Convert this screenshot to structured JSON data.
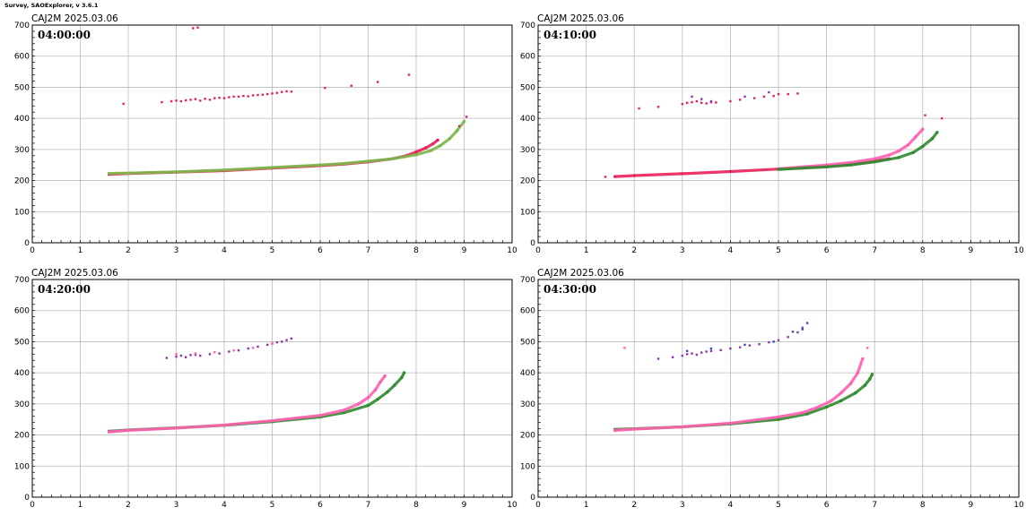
{
  "app_title": "Survey, SAOExplorer, v 3.6.1",
  "colors": {
    "o_mode_trace": "#e8205a",
    "x_mode_trace": "#2e8b2e",
    "light_x_trace": "#7ab84a",
    "magenta_trace": "#ff5fb0",
    "purple_points": "#8a3aa8",
    "blue_points": "#3050c0",
    "grid": "#bbbbbb"
  },
  "chart_data": [
    {
      "type": "scatter",
      "title": "CAJ2M 2025.03.06",
      "annotation": "04:00:00",
      "xlim": [
        0,
        10
      ],
      "ylim": [
        0,
        700
      ],
      "xticks": [
        0,
        1,
        2,
        3,
        4,
        5,
        6,
        7,
        8,
        9,
        10
      ],
      "yticks": [
        0,
        100,
        200,
        300,
        400,
        500,
        600,
        700
      ],
      "grid": true,
      "series": [
        {
          "color": "o_mode_trace",
          "style": "line",
          "x": [
            1.6,
            2,
            3,
            4,
            5,
            6,
            6.5,
            7,
            7.5,
            7.8,
            8,
            8.2,
            8.35,
            8.45
          ],
          "y": [
            220,
            223,
            227,
            232,
            240,
            248,
            253,
            260,
            270,
            280,
            292,
            305,
            318,
            330
          ]
        },
        {
          "color": "light_x_trace",
          "style": "line",
          "x": [
            1.6,
            2,
            3,
            4,
            5,
            6,
            6.5,
            7,
            7.5,
            8,
            8.3,
            8.5,
            8.7,
            8.85,
            9.0
          ],
          "y": [
            223,
            224,
            228,
            234,
            242,
            250,
            255,
            262,
            270,
            283,
            296,
            312,
            335,
            360,
            390
          ]
        },
        {
          "color": "o_mode_trace",
          "style": "dots",
          "x": [
            2.7,
            2.9,
            3.0,
            3.1,
            3.2,
            3.3,
            3.4,
            3.5,
            3.6,
            3.7,
            3.8,
            3.9,
            4.0,
            4.1,
            4.2,
            4.3,
            4.4,
            4.5,
            4.6,
            4.7,
            4.8,
            4.9,
            5.0,
            5.1,
            5.2,
            5.3,
            5.4
          ],
          "y": [
            452,
            455,
            457,
            455,
            458,
            460,
            462,
            457,
            463,
            460,
            465,
            466,
            465,
            468,
            470,
            470,
            472,
            471,
            474,
            475,
            476,
            478,
            480,
            482,
            485,
            487,
            486
          ]
        },
        {
          "color": "o_mode_trace",
          "style": "dots",
          "x": [
            1.9,
            3.35,
            3.45,
            6.1,
            6.65,
            7.2,
            7.85,
            8.9,
            9.05
          ],
          "y": [
            447,
            690,
            692,
            498,
            505,
            517,
            540,
            375,
            405
          ]
        }
      ]
    },
    {
      "type": "scatter",
      "title": "CAJ2M 2025.03.06",
      "annotation": "04:10:00",
      "xlim": [
        0,
        10
      ],
      "ylim": [
        0,
        700
      ],
      "xticks": [
        0,
        1,
        2,
        3,
        4,
        5,
        6,
        7,
        8,
        9,
        10
      ],
      "yticks": [
        0,
        100,
        200,
        300,
        400,
        500,
        600,
        700
      ],
      "grid": true,
      "series": [
        {
          "color": "o_mode_trace",
          "style": "line",
          "x": [
            1.6,
            2,
            3,
            4,
            5,
            6,
            6.5,
            7,
            7.3
          ],
          "y": [
            213,
            216,
            222,
            229,
            237,
            246,
            252,
            262,
            270
          ]
        },
        {
          "color": "magenta_trace",
          "style": "line",
          "x": [
            5,
            6,
            6.5,
            7,
            7.3,
            7.5,
            7.7,
            7.85,
            8.0
          ],
          "y": [
            238,
            250,
            258,
            270,
            282,
            295,
            315,
            340,
            365
          ]
        },
        {
          "color": "x_mode_trace",
          "style": "line",
          "x": [
            5,
            6,
            6.5,
            7,
            7.5,
            7.8,
            8.0,
            8.2,
            8.3
          ],
          "y": [
            236,
            244,
            250,
            260,
            274,
            290,
            310,
            335,
            355
          ]
        },
        {
          "color": "o_mode_trace",
          "style": "dots",
          "x": [
            1.4,
            2.1,
            2.5,
            3.0,
            3.1,
            3.2,
            3.3,
            3.4,
            3.5,
            3.6,
            3.7,
            4.0,
            4.2,
            4.5,
            4.7,
            4.9,
            5.0,
            5.2,
            5.4,
            8.05,
            8.4
          ],
          "y": [
            212,
            432,
            437,
            446,
            450,
            452,
            455,
            450,
            448,
            452,
            451,
            455,
            460,
            465,
            470,
            472,
            478,
            478,
            480,
            410,
            400
          ]
        },
        {
          "color": "purple_points",
          "style": "dots",
          "x": [
            3.2,
            3.4,
            3.6,
            4.3,
            4.8
          ],
          "y": [
            470,
            462,
            455,
            470,
            484
          ]
        }
      ]
    },
    {
      "type": "scatter",
      "title": "CAJ2M 2025.03.06",
      "annotation": "04:20:00",
      "xlim": [
        0,
        10
      ],
      "ylim": [
        0,
        700
      ],
      "xticks": [
        0,
        1,
        2,
        3,
        4,
        5,
        6,
        7,
        8,
        9,
        10
      ],
      "yticks": [
        0,
        100,
        200,
        300,
        400,
        500,
        600,
        700
      ],
      "grid": true,
      "series": [
        {
          "color": "x_mode_trace",
          "style": "line",
          "x": [
            1.6,
            2,
            3,
            4,
            5,
            6,
            6.5,
            7,
            7.2,
            7.4,
            7.55,
            7.7,
            7.75
          ],
          "y": [
            212,
            216,
            223,
            231,
            243,
            258,
            272,
            295,
            315,
            338,
            360,
            385,
            400
          ]
        },
        {
          "color": "magenta_trace",
          "style": "line",
          "x": [
            1.6,
            2,
            3,
            4,
            5,
            6,
            6.5,
            6.8,
            7.0,
            7.15,
            7.25,
            7.35
          ],
          "y": [
            210,
            215,
            222,
            232,
            246,
            263,
            280,
            300,
            320,
            345,
            370,
            390
          ]
        },
        {
          "color": "purple_points",
          "style": "dots",
          "x": [
            2.8,
            3.0,
            3.1,
            3.2,
            3.3,
            3.4,
            3.5,
            3.7,
            3.9,
            4.1,
            4.3,
            4.5,
            4.7,
            4.9,
            5.0,
            5.1,
            5.2,
            5.3,
            5.4
          ],
          "y": [
            448,
            452,
            455,
            450,
            457,
            458,
            455,
            460,
            462,
            468,
            472,
            478,
            484,
            490,
            494,
            498,
            500,
            505,
            510
          ]
        },
        {
          "color": "magenta_trace",
          "style": "dots",
          "x": [
            3.0,
            3.4,
            3.8,
            4.2,
            4.6,
            5.0
          ],
          "y": [
            460,
            462,
            466,
            472,
            480,
            494
          ]
        }
      ]
    },
    {
      "type": "scatter",
      "title": "CAJ2M 2025.03.06",
      "annotation": "04:30:00",
      "xlim": [
        0,
        10
      ],
      "ylim": [
        0,
        700
      ],
      "xticks": [
        0,
        1,
        2,
        3,
        4,
        5,
        6,
        7,
        8,
        9,
        10
      ],
      "yticks": [
        0,
        100,
        200,
        300,
        400,
        500,
        600,
        700
      ],
      "grid": true,
      "series": [
        {
          "color": "x_mode_trace",
          "style": "line",
          "x": [
            1.6,
            2,
            3,
            4,
            5,
            5.6,
            6.0,
            6.3,
            6.6,
            6.8,
            6.9,
            6.95
          ],
          "y": [
            218,
            220,
            226,
            236,
            250,
            268,
            290,
            310,
            335,
            360,
            380,
            395
          ]
        },
        {
          "color": "magenta_trace",
          "style": "line",
          "x": [
            1.6,
            2,
            3,
            4,
            5,
            5.5,
            5.8,
            6.1,
            6.3,
            6.5,
            6.65,
            6.75
          ],
          "y": [
            215,
            219,
            226,
            238,
            258,
            272,
            288,
            310,
            335,
            365,
            400,
            445
          ]
        },
        {
          "color": "purple_points",
          "style": "dots",
          "x": [
            2.5,
            2.8,
            3.0,
            3.1,
            3.2,
            3.3,
            3.4,
            3.5,
            3.6,
            3.8,
            4.0,
            4.2,
            4.4,
            4.6,
            4.8,
            5.0,
            5.2,
            5.4,
            5.5
          ],
          "y": [
            445,
            450,
            455,
            460,
            462,
            458,
            465,
            468,
            470,
            473,
            478,
            482,
            488,
            492,
            498,
            505,
            515,
            530,
            545
          ]
        },
        {
          "color": "blue_points",
          "style": "dots",
          "x": [
            3.1,
            3.6,
            4.3,
            4.9,
            5.3,
            5.5,
            5.6
          ],
          "y": [
            470,
            478,
            490,
            500,
            532,
            540,
            560
          ]
        },
        {
          "color": "magenta_trace",
          "style": "dots",
          "x": [
            1.8,
            6.85
          ],
          "y": [
            480,
            480
          ]
        }
      ]
    }
  ]
}
